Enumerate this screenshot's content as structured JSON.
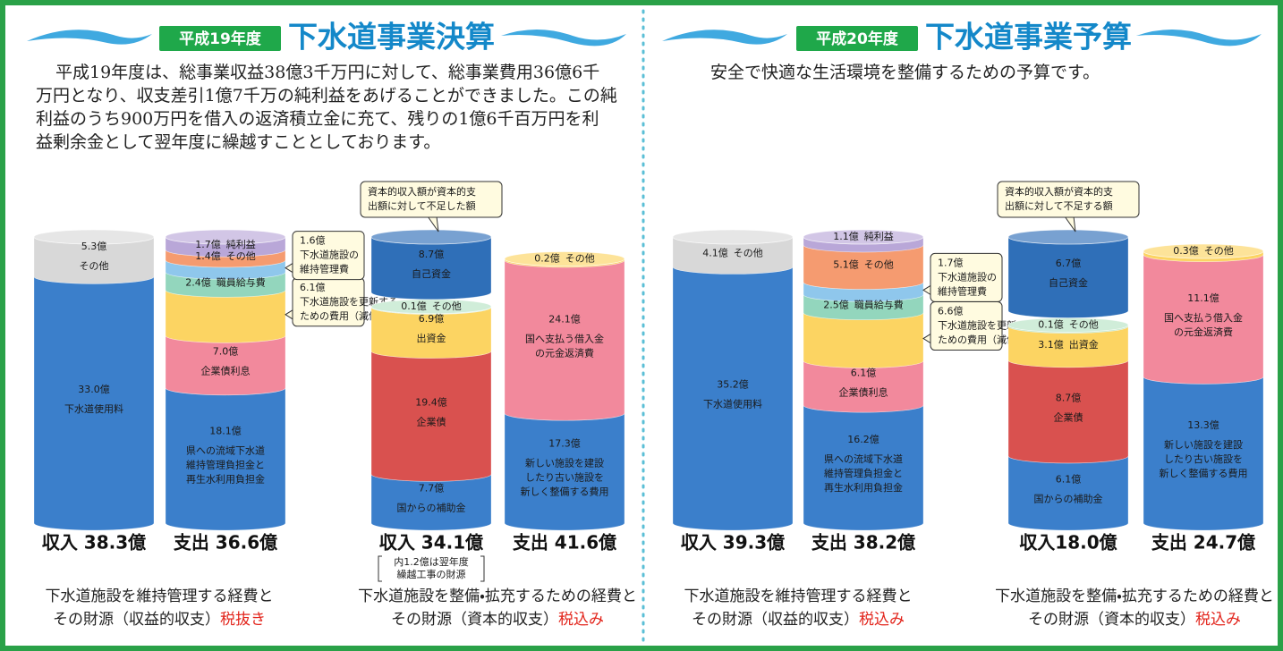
{
  "panels": [
    {
      "badge": "平成19年度",
      "title": "下水道事業決算",
      "text": [
        "平成19年度は、総事業収益38億3千万円に対して、総事業費用36億6千",
        "万円となり、収支差引1億7千万の純利益をあげることができました。この純",
        "利益のうち900万円を借入の返済積立金に充て、残りの1億6千百万円を利",
        "益剰余金として翌年度に繰越すこととしております。"
      ],
      "charts": [
        {
          "columns": [
            {
              "caption": "収入 38.3億",
              "segments": [
                {
                  "value": 33.0,
                  "amount": "33.0億",
                  "name": [
                    "下水道使用料"
                  ],
                  "color": "#3b7fcb"
                },
                {
                  "value": 5.3,
                  "amount": "5.3億",
                  "name": [
                    "その他"
                  ],
                  "color": "#d8d8d8"
                }
              ]
            },
            {
              "caption": "支出 36.6億",
              "segments": [
                {
                  "value": 18.1,
                  "amount": "18.1億",
                  "name": [
                    "県への流域下水道",
                    "維持管理負担金と",
                    "再生水利用負担金"
                  ],
                  "color": "#3b7fcb"
                },
                {
                  "value": 7.0,
                  "amount": "7.0億",
                  "name": [
                    "企業債利息"
                  ],
                  "color": "#f2899c"
                },
                {
                  "value": 6.1,
                  "amount": "6.1億",
                  "name": [
                    "下水道施設を更新する",
                    "ための費用（減価償却費）"
                  ],
                  "color": "#fcd462"
                },
                {
                  "value": 2.4,
                  "amount": "2.4億",
                  "name": [
                    "職員給与費"
                  ],
                  "color": "#93d6bd"
                },
                {
                  "value": 1.6,
                  "amount": "1.6億",
                  "name": [
                    "下水道施設の",
                    "維持管理費"
                  ],
                  "color": "#8fc7ec"
                },
                {
                  "value": 1.4,
                  "amount": "1.4億",
                  "name": [
                    "その他"
                  ],
                  "color": "#f59b70"
                },
                {
                  "value": 1.7,
                  "amount": "1.7億",
                  "name": [
                    "純利益"
                  ],
                  "color": "#b9a7d8"
                }
              ]
            }
          ],
          "footer": [
            "下水道施設を維持管理する経費と",
            "その財源（収益的収支）"
          ],
          "tax": "税抜き"
        },
        {
          "columns": [
            {
              "caption": "収入 34.1億",
              "sub": [
                "内1.2億は翌年度",
                "繰越工事の財源"
              ],
              "segments": [
                {
                  "value": 7.7,
                  "amount": "7.7億",
                  "name": [
                    "国からの補助金"
                  ],
                  "color": "#3b7fcb"
                },
                {
                  "value": 19.4,
                  "amount": "19.4億",
                  "name": [
                    "企業債"
                  ],
                  "color": "#d9514f"
                },
                {
                  "value": 6.9,
                  "amount": "6.9億",
                  "name": [
                    "出資金"
                  ],
                  "color": "#fcd462"
                },
                {
                  "value": 0.1,
                  "amount": "0.1億",
                  "name": [
                    "その他"
                  ],
                  "color": "#b6e3c4"
                }
              ],
              "shortfall": {
                "value": 8.7,
                "amount": "8.7億",
                "name": [
                  "自己資金"
                ],
                "color": "#2f6fb8",
                "note": [
                  "資本的収入額が資本的支",
                  "出額に対して不足した額"
                ]
              }
            },
            {
              "caption": "支出 41.6億",
              "segments": [
                {
                  "value": 17.3,
                  "amount": "17.3億",
                  "name": [
                    "新しい施設を建設",
                    "したり古い施設を",
                    "新しく整備する費用"
                  ],
                  "color": "#3b7fcb"
                },
                {
                  "value": 24.1,
                  "amount": "24.1億",
                  "name": [
                    "国へ支払う借入金",
                    "の元金返済費"
                  ],
                  "color": "#f2899c"
                },
                {
                  "value": 0.2,
                  "amount": "0.2億",
                  "name": [
                    "その他"
                  ],
                  "color": "#fcd462"
                }
              ]
            }
          ],
          "footer": [
            "下水道施設を整備・拡充するための経費と",
            "その財源（資本的収支）"
          ],
          "tax": "税込み"
        }
      ]
    },
    {
      "badge": "平成20年度",
      "title": "下水道事業予算",
      "text": [
        "安全で快適な生活環境を整備するための予算です。"
      ],
      "charts": [
        {
          "columns": [
            {
              "caption": "収入 39.3億",
              "segments": [
                {
                  "value": 35.2,
                  "amount": "35.2億",
                  "name": [
                    "下水道使用料"
                  ],
                  "color": "#3b7fcb"
                },
                {
                  "value": 4.1,
                  "amount": "4.1億",
                  "name": [
                    "その他"
                  ],
                  "color": "#d8d8d8"
                }
              ]
            },
            {
              "caption": "支出 38.2億",
              "segments": [
                {
                  "value": 16.2,
                  "amount": "16.2億",
                  "name": [
                    "県への流域下水道",
                    "維持管理負担金と",
                    "再生水利用負担金"
                  ],
                  "color": "#3b7fcb"
                },
                {
                  "value": 6.1,
                  "amount": "6.1億",
                  "name": [
                    "企業債利息"
                  ],
                  "color": "#f2899c"
                },
                {
                  "value": 6.6,
                  "amount": "6.6億",
                  "name": [
                    "下水道施設を更新する",
                    "ための費用（減価償却費）"
                  ],
                  "color": "#fcd462"
                },
                {
                  "value": 2.5,
                  "amount": "2.5億",
                  "name": [
                    "職員給与費"
                  ],
                  "color": "#93d6bd"
                },
                {
                  "value": 1.7,
                  "amount": "1.7億",
                  "name": [
                    "下水道施設の",
                    "維持管理費"
                  ],
                  "color": "#8fc7ec"
                },
                {
                  "value": 5.1,
                  "amount": "5.1億",
                  "name": [
                    "その他"
                  ],
                  "color": "#f59b70"
                },
                {
                  "value": 1.1,
                  "amount": "1.1億",
                  "name": [
                    "純利益"
                  ],
                  "color": "#b9a7d8"
                }
              ]
            }
          ],
          "footer": [
            "下水道施設を維持管理する経費と",
            "その財源（収益的収支）"
          ],
          "tax": "税込み"
        },
        {
          "columns": [
            {
              "caption": "収入18.0億",
              "segments": [
                {
                  "value": 6.1,
                  "amount": "6.1億",
                  "name": [
                    "国からの補助金"
                  ],
                  "color": "#3b7fcb"
                },
                {
                  "value": 8.7,
                  "amount": "8.7億",
                  "name": [
                    "企業債"
                  ],
                  "color": "#d9514f"
                },
                {
                  "value": 3.1,
                  "amount": "3.1億",
                  "name": [
                    "出資金"
                  ],
                  "color": "#fcd462"
                },
                {
                  "value": 0.1,
                  "amount": "0.1億",
                  "name": [
                    "その他"
                  ],
                  "color": "#b6e3c4"
                }
              ],
              "shortfall": {
                "value": 6.7,
                "amount": "6.7億",
                "name": [
                  "自己資金"
                ],
                "color": "#2f6fb8",
                "note": [
                  "資本的収入額が資本的支",
                  "出額に対して不足する額"
                ]
              }
            },
            {
              "caption": "支出 24.7億",
              "segments": [
                {
                  "value": 13.3,
                  "amount": "13.3億",
                  "name": [
                    "新しい施設を建設",
                    "したり古い施設を",
                    "新しく整備する費用"
                  ],
                  "color": "#3b7fcb"
                },
                {
                  "value": 11.1,
                  "amount": "11.1億",
                  "name": [
                    "国へ支払う借入金",
                    "の元金返済費"
                  ],
                  "color": "#f2899c"
                },
                {
                  "value": 0.3,
                  "amount": "0.3億",
                  "name": [
                    "その他"
                  ],
                  "color": "#fcd462"
                }
              ]
            }
          ],
          "footer": [
            "下水道施設を整備・拡充するための経費と",
            "その財源（資本的収支）"
          ],
          "tax": "税込み"
        }
      ]
    }
  ]
}
